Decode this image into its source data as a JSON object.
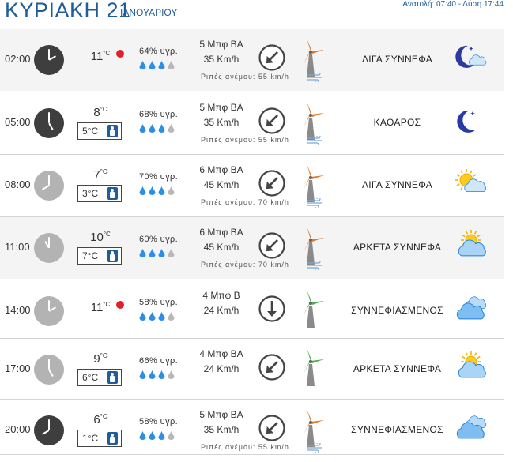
{
  "header": {
    "day": "ΚΥΡΙΑΚΗ 21",
    "month": "ΙΑΝΟΥΑΡΙΟΥ",
    "sun": "Ανατολή: 07:40  - Δύση 17:44"
  },
  "rows": [
    {
      "time": "02:00",
      "clock": "dark",
      "temp": "11",
      "temp_unit": "°C",
      "red_dot": true,
      "feels": "",
      "humidity": "64% υγρ.",
      "drops": 3,
      "wind_speed": "5 Μπφ ΒΑ",
      "wind_kmh": "35 Km/h",
      "wind_dir": "sw",
      "gust": "Ριπές ανέμου: 55 km/h",
      "turbine_color": "#e07d2a",
      "condition": "ΛΙΓΑ ΣΥΝΝΕΦΑ",
      "icon": "moon-cloud-icon"
    },
    {
      "time": "05:00",
      "clock": "dark",
      "temp": "8",
      "temp_unit": "°C",
      "red_dot": false,
      "feels": "5°C",
      "humidity": "68% υγρ.",
      "drops": 3,
      "wind_speed": "5 Μπφ ΒΑ",
      "wind_kmh": "35 Km/h",
      "wind_dir": "sw",
      "gust": "Ριπές ανέμου: 55 km/h",
      "turbine_color": "#e07d2a",
      "condition": "ΚΑΘΑΡΟΣ",
      "icon": "moon-icon"
    },
    {
      "time": "08:00",
      "clock": "light",
      "temp": "7",
      "temp_unit": "°C",
      "red_dot": false,
      "feels": "3°C",
      "humidity": "70% υγρ.",
      "drops": 3,
      "wind_speed": "6 Μπφ ΒΑ",
      "wind_kmh": "45 Km/h",
      "wind_dir": "sw",
      "gust": "Ριπές ανέμου: 70 km/h",
      "turbine_color": "#e07d2a",
      "condition": "ΛΙΓΑ ΣΥΝΝΕΦΑ",
      "icon": "sun-cloud-icon"
    },
    {
      "time": "11:00",
      "clock": "light",
      "temp": "10",
      "temp_unit": "°C",
      "red_dot": false,
      "feels": "7°C",
      "humidity": "60% υγρ.",
      "drops": 3,
      "wind_speed": "6 Μπφ ΒΑ",
      "wind_kmh": "45 Km/h",
      "wind_dir": "sw",
      "gust": "Ριπές ανέμου: 70 km/h",
      "turbine_color": "#e07d2a",
      "condition": "ΑΡΚΕΤΑ ΣΥΝΝΕΦΑ",
      "icon": "sun-clouds-icon"
    },
    {
      "time": "14:00",
      "clock": "light",
      "temp": "11",
      "temp_unit": "°C",
      "red_dot": true,
      "feels": "",
      "humidity": "58% υγρ.",
      "drops": 3,
      "wind_speed": "4 Μπφ Β",
      "wind_kmh": "24 Km/h",
      "wind_dir": "s",
      "gust": "",
      "turbine_color": "#4caf50",
      "condition": "ΣΥΝΝΕΦΙΑΣΜΕΝΟΣ",
      "icon": "clouds-icon"
    },
    {
      "time": "17:00",
      "clock": "light",
      "temp": "9",
      "temp_unit": "°C",
      "red_dot": false,
      "feels": "6°C",
      "humidity": "66% υγρ.",
      "drops": 3,
      "wind_speed": "4 Μπφ ΒΑ",
      "wind_kmh": "24 Km/h",
      "wind_dir": "sw",
      "gust": "",
      "turbine_color": "#4caf50",
      "condition": "ΑΡΚΕΤΑ ΣΥΝΝΕΦΑ",
      "icon": "sun-clouds-icon"
    },
    {
      "time": "20:00",
      "clock": "dark",
      "temp": "6",
      "temp_unit": "°C",
      "red_dot": false,
      "feels": "1°C",
      "humidity": "58% υγρ.",
      "drops": 3,
      "wind_speed": "5 Μπφ ΒΑ",
      "wind_kmh": "35 Km/h",
      "wind_dir": "sw",
      "gust": "Ριπές ανέμου: 55 km/h",
      "turbine_color": "#e07d2a",
      "condition": "ΣΥΝΝΕΦΙΑΣΜΕΝΟΣ",
      "icon": "clouds-icon"
    }
  ],
  "colors": {
    "accent": "#1f5d9b",
    "drop": "#2d8ee6",
    "red": "#e0202a",
    "row_shade": "#f4f4f4"
  }
}
